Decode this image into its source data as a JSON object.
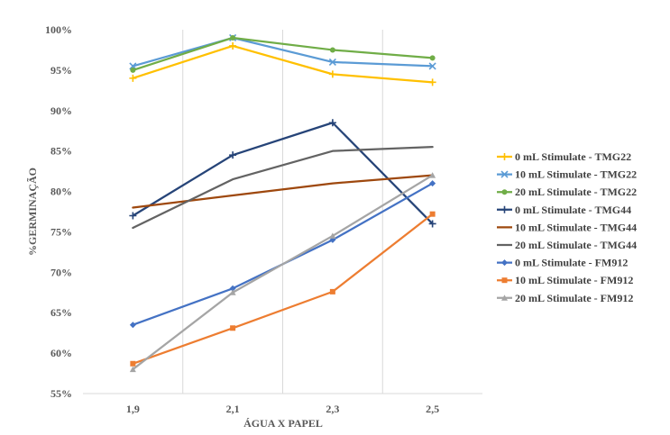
{
  "chart_data": {
    "type": "line",
    "title": "",
    "xlabel": "ÁGUA X PAPEL",
    "ylabel": "%GERMINAÇÃO",
    "categories": [
      "1,9",
      "2,1",
      "2,3",
      "2,5"
    ],
    "ylim": [
      55,
      100
    ],
    "yticks": [
      55,
      60,
      65,
      70,
      75,
      80,
      85,
      90,
      95,
      100
    ],
    "ytick_labels": [
      "55%",
      "60%",
      "65%",
      "70%",
      "75%",
      "80%",
      "85%",
      "90%",
      "95%",
      "100%"
    ],
    "grid": "vertical",
    "legend_position": "right",
    "series": [
      {
        "name": "0 mL Stimulate - TMG22",
        "color": "#ffc000",
        "marker": "cross",
        "values": [
          94,
          98,
          94.5,
          93.5
        ]
      },
      {
        "name": "10 mL Stimulate - TMG22",
        "color": "#5b9bd5",
        "marker": "x",
        "values": [
          95.5,
          99,
          96,
          95.5
        ]
      },
      {
        "name": "20 mL Stimulate - TMG22",
        "color": "#70ad47",
        "marker": "circle",
        "values": [
          95,
          99,
          97.5,
          96.5
        ]
      },
      {
        "name": "0 mL Stimulate - TMG44",
        "color": "#264478",
        "marker": "cross",
        "values": [
          77,
          84.5,
          88.5,
          76
        ]
      },
      {
        "name": "10 mL Stimulate - TMG44",
        "color": "#9e480e",
        "marker": "none",
        "values": [
          78,
          79.5,
          81,
          82
        ]
      },
      {
        "name": "20 mL Stimulate - TMG44",
        "color": "#636363",
        "marker": "none",
        "values": [
          75.5,
          81.5,
          85,
          85.5
        ]
      },
      {
        "name": "0 mL Stimulate - FM912",
        "color": "#4472c4",
        "marker": "diamond",
        "values": [
          63.5,
          68,
          74,
          81
        ]
      },
      {
        "name": "10 mL Stimulate - FM912",
        "color": "#ed7d31",
        "marker": "square",
        "values": [
          58.7,
          63.1,
          67.6,
          77.2
        ]
      },
      {
        "name": "20 mL Stimulate - FM912",
        "color": "#a5a5a5",
        "marker": "triangle",
        "values": [
          58,
          67.5,
          74.5,
          82
        ]
      }
    ]
  }
}
